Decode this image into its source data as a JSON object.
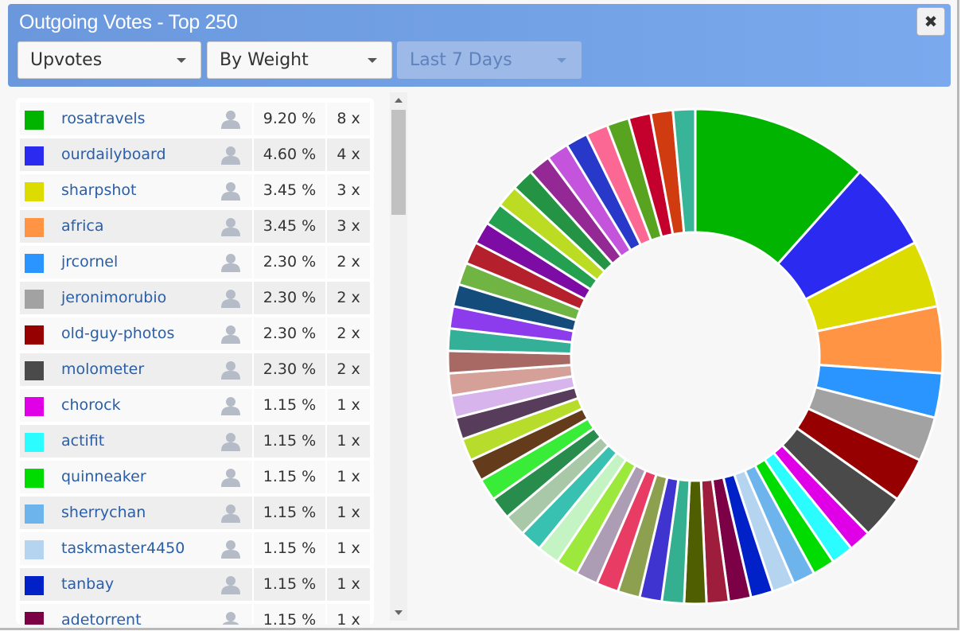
{
  "header": {
    "title": "Outgoing Votes - Top 250",
    "close_label": "✖",
    "vote_type": "Upvotes",
    "sort_by": "By Weight",
    "period": "Last 7 Days"
  },
  "accounts": [
    {
      "name": "rosatravels",
      "percent": "9.20 %",
      "count": "8 x",
      "color": "#00b400"
    },
    {
      "name": "ourdailyboard",
      "percent": "4.60 %",
      "count": "4 x",
      "color": "#2a2af0"
    },
    {
      "name": "sharpshot",
      "percent": "3.45 %",
      "count": "3 x",
      "color": "#dcdc00"
    },
    {
      "name": "africa",
      "percent": "3.45 %",
      "count": "3 x",
      "color": "#ff9444"
    },
    {
      "name": "jrcornel",
      "percent": "2.30 %",
      "count": "2 x",
      "color": "#2a94ff"
    },
    {
      "name": "jeronimorubio",
      "percent": "2.30 %",
      "count": "2 x",
      "color": "#a2a2a2"
    },
    {
      "name": "old-guy-photos",
      "percent": "2.30 %",
      "count": "2 x",
      "color": "#960000"
    },
    {
      "name": "molometer",
      "percent": "2.30 %",
      "count": "2 x",
      "color": "#4a4a4a"
    },
    {
      "name": "chorock",
      "percent": "1.15 %",
      "count": "1 x",
      "color": "#e000e8"
    },
    {
      "name": "actifit",
      "percent": "1.15 %",
      "count": "1 x",
      "color": "#2afcff"
    },
    {
      "name": "quinneaker",
      "percent": "1.15 %",
      "count": "1 x",
      "color": "#00dc00"
    },
    {
      "name": "sherrychan",
      "percent": "1.15 %",
      "count": "1 x",
      "color": "#6eb4ec"
    },
    {
      "name": "taskmaster4450",
      "percent": "1.15 %",
      "count": "1 x",
      "color": "#b4d4f0"
    },
    {
      "name": "tanbay",
      "percent": "1.15 %",
      "count": "1 x",
      "color": "#0020c8"
    },
    {
      "name": "adetorrent",
      "percent": "1.15 %",
      "count": "1 x",
      "color": "#7c0046"
    }
  ],
  "chart_data": {
    "type": "pie",
    "style": "donut",
    "start_angle_deg": 0,
    "direction": "clockwise",
    "slices": [
      {
        "value": 9.2,
        "color": "#00b400"
      },
      {
        "value": 4.6,
        "color": "#2a2af0"
      },
      {
        "value": 3.45,
        "color": "#dcdc00"
      },
      {
        "value": 3.45,
        "color": "#ff9444"
      },
      {
        "value": 2.3,
        "color": "#2a94ff"
      },
      {
        "value": 2.3,
        "color": "#a2a2a2"
      },
      {
        "value": 2.3,
        "color": "#960000"
      },
      {
        "value": 2.3,
        "color": "#4a4a4a"
      },
      {
        "value": 1.15,
        "color": "#e000e8"
      },
      {
        "value": 1.15,
        "color": "#2afcff"
      },
      {
        "value": 1.15,
        "color": "#00dc00"
      },
      {
        "value": 1.15,
        "color": "#6eb4ec"
      },
      {
        "value": 1.15,
        "color": "#b4d4f0"
      },
      {
        "value": 1.15,
        "color": "#0020c8"
      },
      {
        "value": 1.15,
        "color": "#7c0046"
      },
      {
        "value": 1.15,
        "color": "#9e1c3c"
      },
      {
        "value": 1.15,
        "color": "#4e5e00"
      },
      {
        "value": 1.15,
        "color": "#34b090"
      },
      {
        "value": 1.15,
        "color": "#4034d0"
      },
      {
        "value": 1.15,
        "color": "#8ca050"
      },
      {
        "value": 1.15,
        "color": "#e83c64"
      },
      {
        "value": 1.15,
        "color": "#ac9cb4"
      },
      {
        "value": 1.15,
        "color": "#9ce83c"
      },
      {
        "value": 1.15,
        "color": "#c4f4c4"
      },
      {
        "value": 1.15,
        "color": "#38c0b0"
      },
      {
        "value": 1.15,
        "color": "#a8c8a8"
      },
      {
        "value": 1.15,
        "color": "#288c4c"
      },
      {
        "value": 1.15,
        "color": "#38ec38"
      },
      {
        "value": 1.15,
        "color": "#643c1c"
      },
      {
        "value": 1.15,
        "color": "#b8dc2c"
      },
      {
        "value": 1.15,
        "color": "#583c5c"
      },
      {
        "value": 1.15,
        "color": "#d8b4ec"
      },
      {
        "value": 1.15,
        "color": "#d4a098"
      },
      {
        "value": 1.15,
        "color": "#a86864"
      },
      {
        "value": 1.15,
        "color": "#34b098"
      },
      {
        "value": 1.15,
        "color": "#8c3cec"
      },
      {
        "value": 1.15,
        "color": "#144c7c"
      },
      {
        "value": 1.15,
        "color": "#70b444"
      },
      {
        "value": 1.15,
        "color": "#b4202c"
      },
      {
        "value": 1.15,
        "color": "#7c0ca4"
      },
      {
        "value": 1.15,
        "color": "#24a050"
      },
      {
        "value": 1.15,
        "color": "#bcdc24"
      },
      {
        "value": 1.15,
        "color": "#249444"
      },
      {
        "value": 1.15,
        "color": "#942894"
      },
      {
        "value": 1.15,
        "color": "#c454dc"
      },
      {
        "value": 1.15,
        "color": "#2838c8"
      },
      {
        "value": 1.15,
        "color": "#fc6894"
      },
      {
        "value": 1.15,
        "color": "#58a420"
      },
      {
        "value": 1.15,
        "color": "#c4002c"
      },
      {
        "value": 1.15,
        "color": "#d03c10"
      },
      {
        "value": 1.15,
        "color": "#38b498"
      }
    ]
  }
}
